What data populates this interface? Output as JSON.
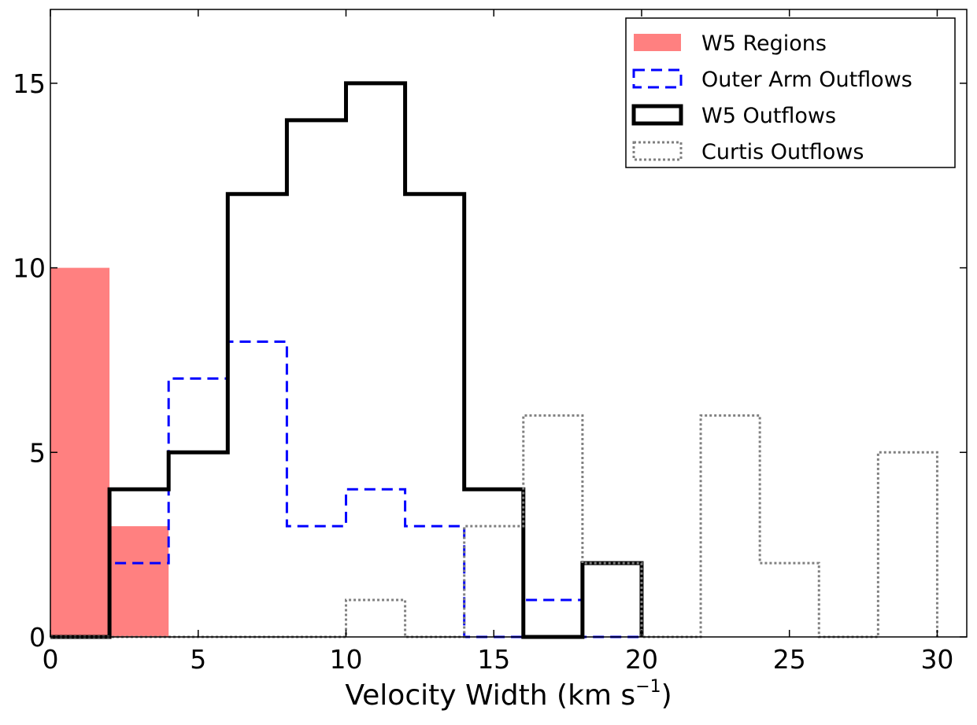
{
  "chart_data": {
    "type": "histogram",
    "xlabel": "Velocity Width (km s",
    "xlabel_exponent": "−1",
    "xlabel_suffix": ")",
    "ylabel": "",
    "xlim": [
      0,
      31
    ],
    "ylim": [
      0,
      17
    ],
    "x_ticks": [
      0,
      5,
      10,
      15,
      20,
      25,
      30
    ],
    "y_ticks": [
      0,
      5,
      10,
      15
    ],
    "grid": false,
    "legend_position": "top-right",
    "bin_edges": [
      0,
      2,
      4,
      6,
      8,
      10,
      12,
      14,
      16,
      18,
      20,
      22,
      24,
      26,
      28,
      30
    ],
    "series": [
      {
        "name": "W5 Regions",
        "style": "filled",
        "color": "#ff8080",
        "counts": [
          10,
          3
        ]
      },
      {
        "name": "Outer Arm Outflows",
        "style": "dashed",
        "color": "#0000ff",
        "counts": [
          0,
          2,
          7,
          8,
          3,
          4,
          3,
          0,
          1,
          0
        ]
      },
      {
        "name": "W5 Outflows",
        "style": "solid",
        "color": "#000000",
        "counts": [
          0,
          4,
          5,
          12,
          14,
          15,
          12,
          4,
          0,
          2
        ]
      },
      {
        "name": "Curtis Outflows",
        "style": "dotted",
        "color": "#808080",
        "counts": [
          0,
          0,
          0,
          0,
          0,
          1,
          0,
          3,
          6,
          2,
          0,
          6,
          2,
          0,
          5
        ]
      }
    ]
  }
}
